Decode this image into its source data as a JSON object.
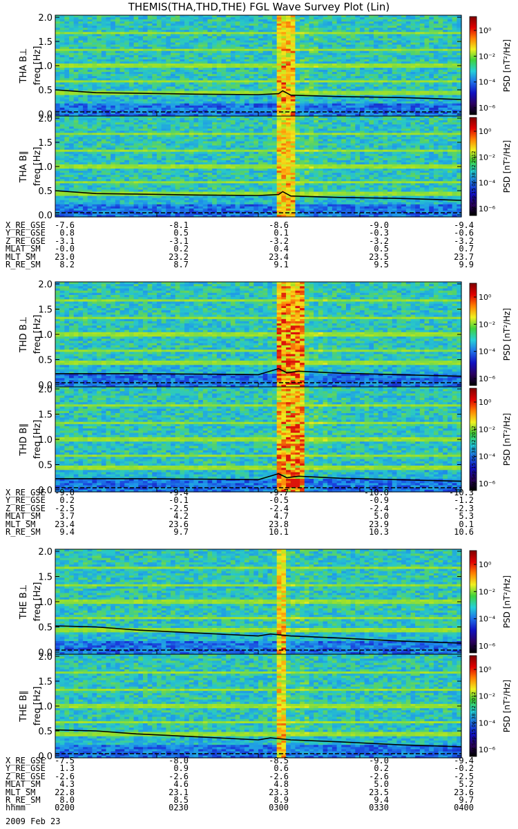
{
  "title": "THEMIS(THA,THD,THE) FGL Wave Survey Plot (Lin)",
  "timestamp": "Sat Sep 15 06:38:32 2012",
  "colorbar": {
    "label": "PSD [nT²/Hz]",
    "ticks": [
      "10⁰",
      "10⁻²",
      "10⁻⁴",
      "10⁻⁶"
    ],
    "colors": [
      "#000000",
      "#2a0060",
      "#1010c0",
      "#1f6fe8",
      "#25d0d8",
      "#3fd23c",
      "#f0f020",
      "#ff8000",
      "#e00000",
      "#800000"
    ]
  },
  "chart_data": [
    {
      "type": "heatmap",
      "probe": "THA",
      "ylabel": "THA B⊥",
      "yunit": "freq [Hz]",
      "y_ticks": [
        "2.0",
        "1.5",
        "1.0",
        "0.5",
        "0.0"
      ],
      "ylim": [
        0,
        2.0
      ],
      "x_time_range": [
        "0200",
        "0400"
      ],
      "burst_start": "0304",
      "burst_end": "0310",
      "fce_line": [
        [
          0,
          0.5
        ],
        [
          0.1,
          0.44
        ],
        [
          0.2,
          0.43
        ],
        [
          0.35,
          0.41
        ],
        [
          0.5,
          0.4
        ],
        [
          0.55,
          0.42
        ],
        [
          0.56,
          0.48
        ],
        [
          0.58,
          0.39
        ],
        [
          0.7,
          0.36
        ],
        [
          0.85,
          0.34
        ],
        [
          1,
          0.3
        ]
      ]
    },
    {
      "type": "heatmap",
      "probe": "THA",
      "ylabel": "THA B∥",
      "yunit": "freq [Hz]",
      "y_ticks": [
        "2.0",
        "1.5",
        "1.0",
        "0.5",
        "0.0"
      ],
      "ylim": [
        0,
        2.0
      ],
      "x_time_range": [
        "0200",
        "0400"
      ],
      "burst_start": "0304",
      "burst_end": "0310",
      "fce_line": [
        [
          0,
          0.5
        ],
        [
          0.1,
          0.44
        ],
        [
          0.2,
          0.43
        ],
        [
          0.35,
          0.41
        ],
        [
          0.5,
          0.4
        ],
        [
          0.55,
          0.42
        ],
        [
          0.56,
          0.48
        ],
        [
          0.58,
          0.39
        ],
        [
          0.7,
          0.36
        ],
        [
          0.85,
          0.34
        ],
        [
          1,
          0.3
        ]
      ]
    },
    {
      "type": "heatmap",
      "probe": "THD",
      "ylabel": "THD B⊥",
      "yunit": "freq [Hz]",
      "y_ticks": [
        "2.0",
        "1.5",
        "1.0",
        "0.5",
        "0.0"
      ],
      "ylim": [
        0,
        2.0
      ],
      "x_time_range": [
        "0200",
        "0400"
      ],
      "burst_start": "0304",
      "burst_end": "0312",
      "fce_line": [
        [
          0,
          0.22
        ],
        [
          0.2,
          0.22
        ],
        [
          0.4,
          0.21
        ],
        [
          0.5,
          0.2
        ],
        [
          0.55,
          0.32
        ],
        [
          0.57,
          0.24
        ],
        [
          0.6,
          0.27
        ],
        [
          0.7,
          0.23
        ],
        [
          0.85,
          0.2
        ],
        [
          1,
          0.17
        ]
      ]
    },
    {
      "type": "heatmap",
      "probe": "THD",
      "ylabel": "THD B∥",
      "yunit": "freq [Hz]",
      "y_ticks": [
        "2.0",
        "1.5",
        "1.0",
        "0.5",
        "0.0"
      ],
      "ylim": [
        0,
        2.0
      ],
      "x_time_range": [
        "0200",
        "0400"
      ],
      "burst_start": "0304",
      "burst_end": "0312",
      "fce_line": [
        [
          0,
          0.22
        ],
        [
          0.2,
          0.22
        ],
        [
          0.4,
          0.21
        ],
        [
          0.5,
          0.2
        ],
        [
          0.55,
          0.32
        ],
        [
          0.57,
          0.24
        ],
        [
          0.6,
          0.27
        ],
        [
          0.7,
          0.23
        ],
        [
          0.85,
          0.2
        ],
        [
          1,
          0.17
        ]
      ]
    },
    {
      "type": "heatmap",
      "probe": "THE",
      "ylabel": "THE B⊥",
      "yunit": "freq [Hz]",
      "y_ticks": [
        "2.0",
        "1.5",
        "1.0",
        "0.5",
        "0.0"
      ],
      "ylim": [
        0,
        2.0
      ],
      "x_time_range": [
        "0200",
        "0400"
      ],
      "burst_start": "0304",
      "burst_end": "0306",
      "fce_line": [
        [
          0,
          0.52
        ],
        [
          0.1,
          0.5
        ],
        [
          0.2,
          0.44
        ],
        [
          0.35,
          0.38
        ],
        [
          0.5,
          0.32
        ],
        [
          0.53,
          0.36
        ],
        [
          0.58,
          0.32
        ],
        [
          0.7,
          0.28
        ],
        [
          0.85,
          0.22
        ],
        [
          1,
          0.18
        ]
      ]
    },
    {
      "type": "heatmap",
      "probe": "THE",
      "ylabel": "THE B∥",
      "yunit": "freq [Hz]",
      "y_ticks": [
        "2.0",
        "1.5",
        "1.0",
        "0.5",
        "0.0"
      ],
      "ylim": [
        0,
        2.0
      ],
      "x_time_range": [
        "0200",
        "0400"
      ],
      "burst_start": "0304",
      "burst_end": "0306",
      "fce_line": [
        [
          0,
          0.52
        ],
        [
          0.1,
          0.5
        ],
        [
          0.2,
          0.44
        ],
        [
          0.35,
          0.38
        ],
        [
          0.5,
          0.32
        ],
        [
          0.53,
          0.36
        ],
        [
          0.58,
          0.32
        ],
        [
          0.7,
          0.28
        ],
        [
          0.85,
          0.22
        ],
        [
          1,
          0.18
        ]
      ]
    }
  ],
  "ephemeris": [
    {
      "rows": [
        {
          "label": "X_RE_GSE",
          "values": [
            "-7.6",
            "-8.1",
            "-8.6",
            "-9.0",
            "-9.4"
          ]
        },
        {
          "label": "Y_RE_GSE",
          "values": [
            "0.8",
            "0.5",
            "0.1",
            "-0.3",
            "-0.6"
          ]
        },
        {
          "label": "Z_RE_GSE",
          "values": [
            "-3.1",
            "-3.1",
            "-3.2",
            "-3.2",
            "-3.2"
          ]
        },
        {
          "label": "MLAT_SM",
          "values": [
            "-0.0",
            "0.2",
            "0.4",
            "0.5",
            "0.7"
          ]
        },
        {
          "label": "MLT_SM",
          "values": [
            "23.0",
            "23.2",
            "23.4",
            "23.5",
            "23.7"
          ]
        },
        {
          "label": "R_RE_SM",
          "values": [
            "8.2",
            "8.7",
            "9.1",
            "9.5",
            "9.9"
          ]
        }
      ]
    },
    {
      "rows": [
        {
          "label": "X_RE_GSE",
          "values": [
            "-9.0",
            "-9.4",
            "-9.7",
            "-10.0",
            "-10.3"
          ]
        },
        {
          "label": "Y_RE_GSE",
          "values": [
            "0.2",
            "-0.1",
            "-0.5",
            "-0.9",
            "-1.2"
          ]
        },
        {
          "label": "Z_RE_GSE",
          "values": [
            "-2.5",
            "-2.5",
            "-2.4",
            "-2.4",
            "-2.3"
          ]
        },
        {
          "label": "MLAT_SM",
          "values": [
            "3.7",
            "4.2",
            "4.7",
            "5.0",
            "5.3"
          ]
        },
        {
          "label": "MLT_SM",
          "values": [
            "23.4",
            "23.6",
            "23.8",
            "23.9",
            "0.1"
          ]
        },
        {
          "label": "R_RE_SM",
          "values": [
            "9.4",
            "9.7",
            "10.1",
            "10.3",
            "10.6"
          ]
        }
      ]
    },
    {
      "rows": [
        {
          "label": "X_RE_GSE",
          "values": [
            "-7.5",
            "-8.0",
            "-8.5",
            "-9.0",
            "-9.4"
          ]
        },
        {
          "label": "Y_RE_GSE",
          "values": [
            "1.3",
            "0.9",
            "0.6",
            "0.2",
            "-0.2"
          ]
        },
        {
          "label": "Z_RE_GSE",
          "values": [
            "-2.6",
            "-2.6",
            "-2.6",
            "-2.6",
            "-2.5"
          ]
        },
        {
          "label": "MLAT_SM",
          "values": [
            "4.3",
            "4.6",
            "4.8",
            "5.0",
            "5.2"
          ]
        },
        {
          "label": "MLT_SM",
          "values": [
            "22.8",
            "23.1",
            "23.3",
            "23.5",
            "23.6"
          ]
        },
        {
          "label": "R_RE_SM",
          "values": [
            "8.0",
            "8.5",
            "8.9",
            "9.4",
            "9.7"
          ]
        },
        {
          "label": "hhmm",
          "values": [
            "0200",
            "0230",
            "0300",
            "0330",
            "0400"
          ]
        }
      ]
    }
  ],
  "date_label": "2009 Feb 23"
}
